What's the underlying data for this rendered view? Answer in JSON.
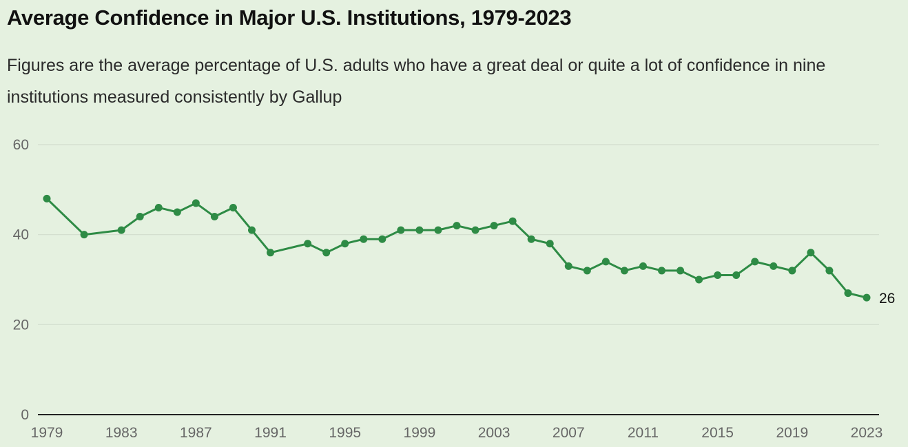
{
  "chart_data": {
    "type": "line",
    "title": "Average Confidence in Major U.S. Institutions, 1979-2023",
    "subtitle": "Figures are the average percentage of U.S. adults who have a great deal or quite a lot of confidence in nine institutions measured consistently by Gallup",
    "xlabel": "",
    "ylabel": "",
    "xlim": [
      1979,
      2023
    ],
    "ylim": [
      0,
      60
    ],
    "grid": true,
    "yticks": [
      0,
      20,
      40,
      60
    ],
    "xticks": [
      1979,
      1983,
      1987,
      1991,
      1995,
      1999,
      2003,
      2007,
      2011,
      2015,
      2019,
      2023
    ],
    "line_color": "#2e8b45",
    "end_label": "26",
    "series": [
      {
        "name": "Average confidence",
        "x": [
          1979,
          1981,
          1983,
          1984,
          1985,
          1986,
          1987,
          1988,
          1989,
          1990,
          1991,
          1993,
          1994,
          1995,
          1996,
          1997,
          1998,
          1999,
          2000,
          2001,
          2002,
          2003,
          2004,
          2005,
          2006,
          2007,
          2008,
          2009,
          2010,
          2011,
          2012,
          2013,
          2014,
          2015,
          2016,
          2017,
          2018,
          2019,
          2020,
          2021,
          2022,
          2023
        ],
        "values": [
          48,
          40,
          41,
          44,
          46,
          45,
          47,
          44,
          46,
          41,
          36,
          38,
          36,
          38,
          39,
          39,
          41,
          41,
          41,
          42,
          41,
          42,
          43,
          39,
          38,
          33,
          32,
          34,
          32,
          33,
          32,
          32,
          30,
          31,
          31,
          34,
          33,
          32,
          36,
          32,
          27,
          26
        ]
      }
    ]
  }
}
